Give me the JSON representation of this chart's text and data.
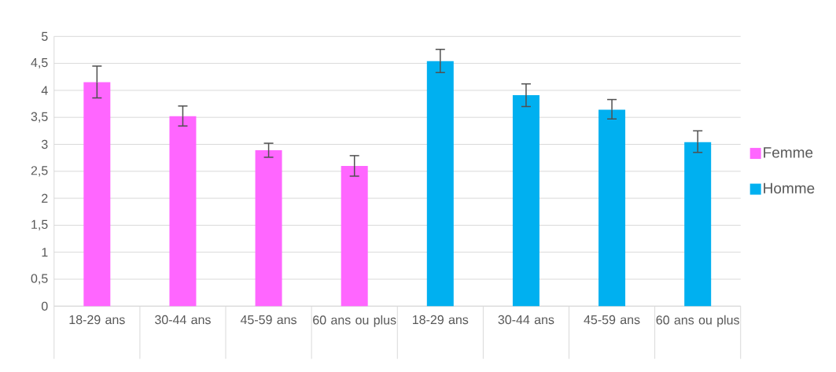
{
  "chart_data": {
    "type": "bar",
    "categories": [
      "18-29 ans",
      "30-44 ans",
      "45-59 ans",
      "60 ans ou plus",
      "18-29 ans",
      "30-44 ans",
      "45-59 ans",
      "60 ans ou plus"
    ],
    "series": [
      {
        "name": "Femme",
        "color": "#ff66ff",
        "values": [
          4.15,
          3.52,
          2.89,
          2.6,
          null,
          null,
          null,
          null
        ],
        "errors": [
          [
            3.86,
            4.45
          ],
          [
            3.34,
            3.71
          ],
          [
            2.76,
            3.02
          ],
          [
            2.41,
            2.79
          ],
          null,
          null,
          null,
          null
        ]
      },
      {
        "name": "Homme",
        "color": "#00b0f0",
        "values": [
          null,
          null,
          null,
          null,
          4.54,
          3.91,
          3.64,
          3.04
        ],
        "errors": [
          null,
          null,
          null,
          null,
          [
            4.33,
            4.76
          ],
          [
            3.7,
            4.12
          ],
          [
            3.47,
            3.83
          ],
          [
            2.85,
            3.25
          ]
        ]
      }
    ],
    "ylim": [
      0,
      5
    ],
    "yticks": [
      0,
      {
        "value": 0.5,
        "label": "0,5"
      },
      1,
      {
        "value": 1.5,
        "label": "1,5"
      },
      2,
      {
        "value": 2.5,
        "label": "2,5"
      },
      3,
      {
        "value": 3.5,
        "label": "3,5"
      },
      4,
      {
        "value": 4.5,
        "label": "4,5"
      },
      5
    ],
    "grid": "y",
    "legend": "right"
  }
}
